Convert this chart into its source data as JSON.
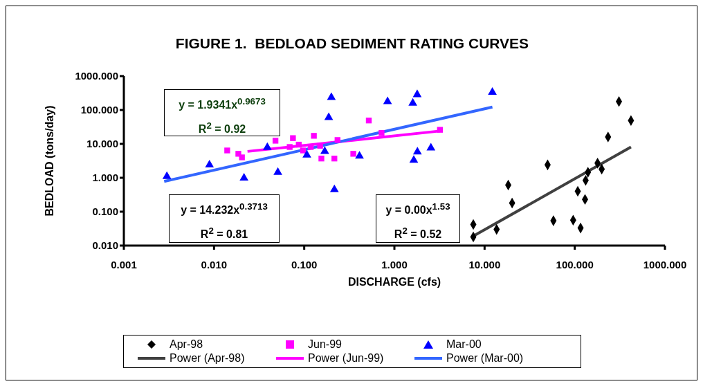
{
  "chart_data": {
    "type": "scatter",
    "title": "FIGURE 1.  BEDLOAD SEDIMENT RATING CURVES",
    "xlabel": "DISCHARGE (cfs)",
    "ylabel": "BEDLOAD (tons/day)",
    "log": "xy",
    "grid": false,
    "legend": "bottom",
    "xlim": [
      0.001,
      1000
    ],
    "xticks": [
      0.001,
      {
        "value": 0.01,
        "label": "0.010"
      },
      {
        "value": 0.1,
        "label": "0.100"
      },
      {
        "value": 1,
        "label": "1.000"
      },
      {
        "value": 10,
        "label": "10.000"
      },
      {
        "value": 100,
        "label": "100.000"
      },
      {
        "value": 1000,
        "label": "1000.000"
      }
    ],
    "ylim": [
      0.01,
      1000
    ],
    "yticks": [
      {
        "value": 0.01,
        "label": "0.010"
      },
      {
        "value": 0.1,
        "label": "0.100"
      },
      {
        "value": 1,
        "label": "1.000"
      },
      {
        "value": 10,
        "label": "10.000"
      },
      {
        "value": 100,
        "label": "100.000"
      },
      {
        "value": 1000,
        "label": "1000.000"
      }
    ],
    "annotations": [
      "y = 1.9341x$^{0.9673}$",
      "R$^{2}$ = 0.92",
      "y = 14.232x$^{0.3713}$",
      "R$^{2}$ = 0.81",
      "y = 0.00x$^{1.53}$",
      "R$^{2}$ = 0.52"
    ],
    "series": [
      {
        "name": "Apr-98",
        "type": "scatter",
        "marker": "diamond",
        "color": "#000000",
        "x": [
          7.5,
          7.5,
          13.6,
          18.3,
          20.2,
          50,
          58,
          96,
          116,
          108,
          130,
          132,
          140,
          179,
          199,
          234,
          309,
          420
        ],
        "values": [
          0.042,
          0.018,
          0.03,
          0.61,
          0.18,
          2.4,
          0.054,
          0.056,
          0.033,
          0.4,
          0.23,
          0.84,
          1.45,
          2.7,
          1.8,
          16,
          178,
          49
        ]
      },
      {
        "name": "Jun-99",
        "type": "scatter",
        "marker": "square",
        "color": "#ff00ff",
        "x": [
          0.014,
          0.0186,
          0.0204,
          0.048,
          0.075,
          0.069,
          0.087,
          0.097,
          0.128,
          0.118,
          0.15,
          0.155,
          0.216,
          0.234,
          0.35,
          0.52,
          0.72,
          3.2
        ],
        "values": [
          6.4,
          5.1,
          4.0,
          12.4,
          14.8,
          8.1,
          9.5,
          6.4,
          17.3,
          8.1,
          8.8,
          3.7,
          3.7,
          13,
          5.1,
          49,
          21,
          26
        ]
      },
      {
        "name": "Mar-00",
        "type": "scatter",
        "marker": "triangle",
        "color": "#0000ff",
        "x": [
          0.003,
          0.0089,
          0.0215,
          0.039,
          0.051,
          0.107,
          0.2,
          0.187,
          0.169,
          0.216,
          0.41,
          0.84,
          1.79,
          1.6,
          12.2,
          1.8,
          1.64,
          2.54
        ],
        "values": [
          1.1,
          2.4,
          0.98,
          7.9,
          1.45,
          4.7,
          236,
          60,
          6.0,
          0.45,
          4.4,
          178,
          285,
          160,
          333,
          5.8,
          3.3,
          7.6
        ]
      },
      {
        "name": "Power (Apr-98)",
        "type": "line",
        "marker": "none",
        "color": "#404040",
        "x": [
          7.5,
          420
        ],
        "values": [
          0.019,
          8.1
        ]
      },
      {
        "name": "Power (Jun-99)",
        "type": "line",
        "marker": "none",
        "color": "#ff00ff",
        "x": [
          0.0235,
          3.2
        ],
        "values": [
          6.0,
          24
        ]
      },
      {
        "name": "Power (Mar-00)",
        "type": "line",
        "marker": "none",
        "color": "#3366ff",
        "x": [
          0.0028,
          12.2
        ],
        "values": [
          0.78,
          122
        ]
      }
    ]
  }
}
